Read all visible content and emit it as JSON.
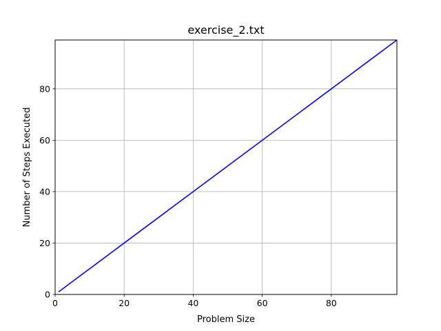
{
  "chart_data": {
    "type": "line",
    "title": "exercise_2.txt",
    "xlabel": "Problem Size",
    "ylabel": "Number of Steps Executed",
    "xlim": [
      0,
      99
    ],
    "ylim": [
      0,
      99
    ],
    "x_ticks": [
      0,
      20,
      40,
      60,
      80
    ],
    "y_ticks": [
      0,
      20,
      40,
      60,
      80
    ],
    "grid": true,
    "series": [
      {
        "color": "#0000ff",
        "x": [
          1,
          10,
          20,
          30,
          40,
          50,
          60,
          70,
          80,
          90,
          99
        ],
        "y": [
          1,
          10,
          20,
          30,
          40,
          50,
          60,
          70,
          80,
          90,
          99
        ]
      }
    ]
  }
}
